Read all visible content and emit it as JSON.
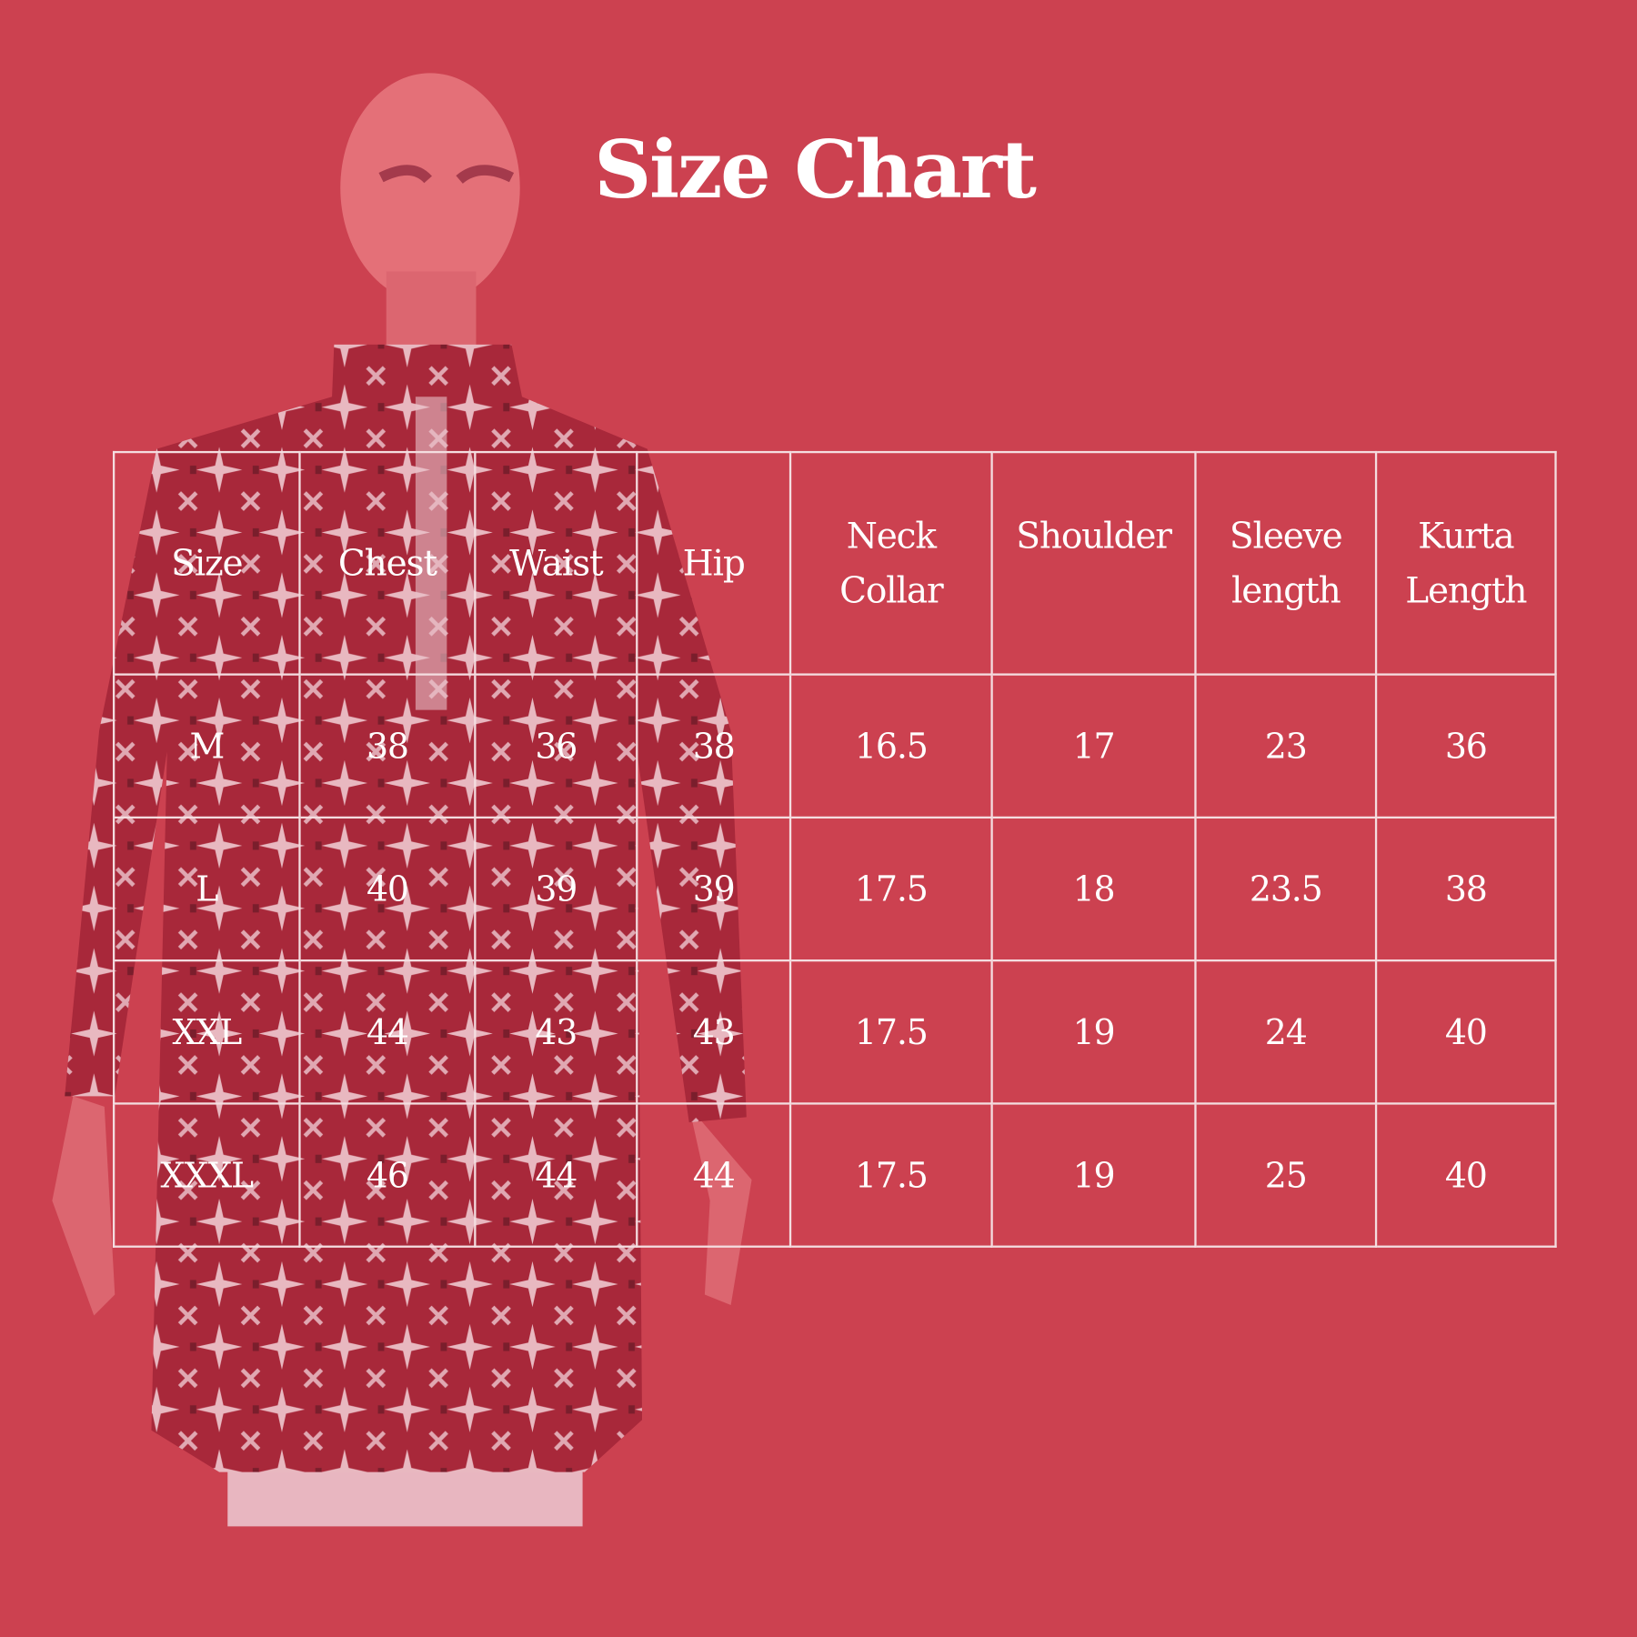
{
  "title": "Size Chart",
  "colors": {
    "background": "#cc4150",
    "text": "#ffffff",
    "grid": "#f4dde0"
  },
  "table": {
    "headers": [
      "Size",
      "Chest",
      "Waist",
      "Hip",
      "Neck\nCollar",
      "Shoulder",
      "Sleeve\nlength",
      "Kurta\nLength"
    ],
    "rows": [
      [
        "M",
        "38",
        "36",
        "38",
        "16.5",
        "17",
        "23",
        "36"
      ],
      [
        "L",
        "40",
        "39",
        "39",
        "17.5",
        "18",
        "23.5",
        "38"
      ],
      [
        "XXL",
        "44",
        "43",
        "43",
        "17.5",
        "19",
        "24",
        "40"
      ],
      [
        "XXXL",
        "46",
        "44",
        "44",
        "17.5",
        "19",
        "25",
        "40"
      ]
    ]
  }
}
